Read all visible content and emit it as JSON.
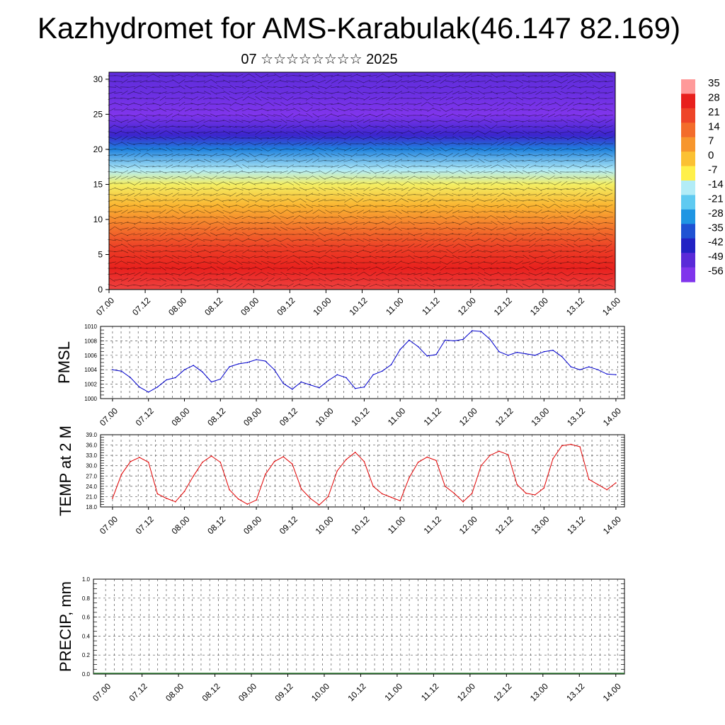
{
  "title": "Kazhydromet for AMS-Karabulak(46.147 82.169)",
  "subtitle": "07 ☆☆☆☆☆☆☆☆ 2025",
  "time_labels": [
    "07.00",
    "07.12",
    "08.00",
    "08.12",
    "09.00",
    "09.12",
    "10.00",
    "10.12",
    "11.00",
    "11.12",
    "12.00",
    "12.12",
    "13.00",
    "13.12",
    "14.00"
  ],
  "colorbar": {
    "labels": [
      "35",
      "28",
      "21",
      "14",
      "7",
      "0",
      "-7",
      "-14",
      "-21",
      "-28",
      "-35",
      "-42",
      "-49",
      "-56"
    ],
    "colors": [
      "#ff9a9a",
      "#e8201d",
      "#ee4428",
      "#f36c2b",
      "#f7962d",
      "#fbc133",
      "#fff04a",
      "#b2ecf7",
      "#5fcaf1",
      "#1f95e3",
      "#1f52d3",
      "#2222c4",
      "#5a2ad8",
      "#8035ec"
    ]
  },
  "chart_data": [
    {
      "type": "heatmap",
      "title": "Kazhydromet for AMS-Karabulak(46.147 82.169)",
      "subtitle": "07 ☆☆☆☆☆☆☆☆ 2025",
      "x_labels": [
        "07.00",
        "07.12",
        "08.00",
        "08.12",
        "09.00",
        "09.12",
        "10.00",
        "10.12",
        "11.00",
        "11.12",
        "12.00",
        "12.12",
        "13.00",
        "13.12",
        "14.00"
      ],
      "y_ticks": [
        0,
        5,
        10,
        15,
        20,
        25,
        30
      ],
      "ylim": [
        0,
        31
      ],
      "profile_levels": [
        0,
        3,
        6,
        9,
        12,
        15,
        17,
        20,
        22,
        25,
        28,
        31
      ],
      "profile_values": [
        30,
        28,
        22,
        12,
        2,
        -8,
        -14,
        -30,
        -45,
        -56,
        -52,
        -50
      ],
      "color_scale_range": [
        -56,
        35
      ]
    },
    {
      "type": "line",
      "ylabel": "PMSL",
      "ylim": [
        1000,
        1010
      ],
      "y_ticks": [
        "1000",
        "1002",
        "1004",
        "1006",
        "1008",
        "1010"
      ],
      "x_labels": [
        "07.00",
        "07.12",
        "08.00",
        "08.12",
        "09.00",
        "09.12",
        "10.00",
        "10.12",
        "11.00",
        "11.12",
        "12.00",
        "12.12",
        "13.00",
        "13.12",
        "14.00"
      ],
      "series": [
        {
          "color": "#0000cc",
          "values": [
            1004.0,
            1003.8,
            1002.9,
            1001.6,
            1000.9,
            1001.6,
            1002.6,
            1002.9,
            1004.0,
            1004.6,
            1003.7,
            1002.3,
            1002.7,
            1004.4,
            1004.8,
            1005.0,
            1005.4,
            1005.2,
            1004.0,
            1002.1,
            1001.3,
            1002.3,
            1001.9,
            1001.5,
            1002.5,
            1003.3,
            1002.9,
            1001.4,
            1001.6,
            1003.3,
            1003.8,
            1004.7,
            1006.8,
            1008.1,
            1007.2,
            1005.9,
            1006.1,
            1008.1,
            1008.0,
            1008.2,
            1009.4,
            1009.3,
            1008.2,
            1006.5,
            1006.0,
            1006.4,
            1006.2,
            1006.0,
            1006.5,
            1006.7,
            1005.8,
            1004.4,
            1004.0,
            1004.4,
            1004.0,
            1003.4,
            1003.3
          ]
        }
      ]
    },
    {
      "type": "line",
      "ylabel": "TEMP at 2 M",
      "ylim": [
        18,
        39
      ],
      "y_ticks": [
        "18.0",
        "21.0",
        "24.0",
        "27.0",
        "30.0",
        "33.0",
        "36.0",
        "39.0"
      ],
      "x_labels": [
        "07.00",
        "07.12",
        "08.00",
        "08.12",
        "09.00",
        "09.12",
        "10.00",
        "10.12",
        "11.00",
        "11.12",
        "12.00",
        "12.12",
        "13.00",
        "13.12",
        "14.00"
      ],
      "series": [
        {
          "color": "#e00000",
          "values": [
            20.5,
            27.5,
            31.2,
            32.4,
            31.0,
            21.8,
            20.5,
            19.5,
            22.5,
            27.0,
            31.0,
            32.8,
            31.0,
            23.0,
            20.3,
            18.8,
            20.0,
            27.5,
            31.2,
            32.6,
            30.5,
            23.3,
            20.5,
            18.6,
            21.0,
            28.5,
            31.8,
            33.9,
            31.2,
            24.0,
            21.8,
            20.8,
            19.8,
            26.5,
            31.0,
            32.5,
            31.5,
            24.0,
            22.0,
            19.5,
            22.0,
            30.0,
            33.0,
            34.2,
            33.2,
            24.5,
            22.0,
            21.5,
            23.5,
            32.0,
            35.8,
            36.2,
            35.5,
            26.0,
            24.5,
            23.0,
            25.0
          ]
        }
      ]
    },
    {
      "type": "bar",
      "ylabel": "PRECIP, mm",
      "ylim": [
        0,
        1
      ],
      "y_ticks": [
        "0.0",
        "0.2",
        "0.4",
        "0.6",
        "0.8",
        "1.0"
      ],
      "x_labels": [
        "07.00",
        "07.12",
        "08.00",
        "08.12",
        "09.00",
        "09.12",
        "10.00",
        "10.12",
        "11.00",
        "11.12",
        "12.00",
        "12.12",
        "13.00",
        "13.12",
        "14.00"
      ],
      "values": [
        0,
        0,
        0,
        0,
        0,
        0,
        0,
        0,
        0,
        0,
        0,
        0,
        0,
        0,
        0,
        0,
        0,
        0,
        0,
        0,
        0,
        0,
        0,
        0,
        0,
        0,
        0,
        0,
        0,
        0,
        0,
        0,
        0,
        0,
        0,
        0,
        0,
        0,
        0,
        0,
        0,
        0,
        0,
        0,
        0,
        0,
        0,
        0,
        0,
        0,
        0,
        0,
        0,
        0,
        0,
        0
      ]
    }
  ]
}
